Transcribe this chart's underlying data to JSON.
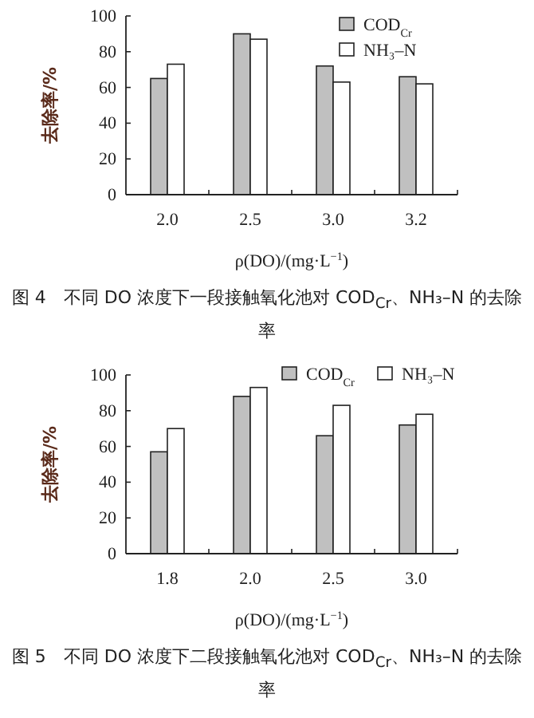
{
  "chart_data": [
    {
      "type": "bar",
      "categories": [
        "2.0",
        "2.5",
        "3.0",
        "3.2"
      ],
      "ylabel": "去除率/%",
      "xlabel": "ρ(DO)/(mg·L$^{−1}$)",
      "ylim": [
        0,
        100
      ],
      "yticks": [
        0,
        20,
        40,
        60,
        80,
        100
      ],
      "legend": "top right",
      "grid": false,
      "series": [
        {
          "name": "COD$_{Cr}$",
          "color": "#c0c0c0",
          "values": [
            65,
            90,
            72,
            66
          ]
        },
        {
          "name": "NH₃–N",
          "color": "#ffffff",
          "values": [
            73,
            87,
            63,
            62
          ]
        }
      ],
      "annotations": [
        "图 4　不同 DO 浓度下一段接触氧化池对 COD$_{Cr}$、NH₃–N 的去除率"
      ]
    },
    {
      "type": "bar",
      "categories": [
        "1.8",
        "2.0",
        "2.5",
        "3.0"
      ],
      "ylabel": "去除率/%",
      "xlabel": "ρ(DO)/(mg·L$^{−1}$)",
      "ylim": [
        0,
        100
      ],
      "yticks": [
        0,
        20,
        40,
        60,
        80,
        100
      ],
      "legend": "top",
      "grid": false,
      "series": [
        {
          "name": "COD$_{Cr}$",
          "color": "#c0c0c0",
          "values": [
            57,
            88,
            66,
            72
          ]
        },
        {
          "name": "NH₃–N",
          "color": "#ffffff",
          "values": [
            70,
            93,
            83,
            78
          ]
        }
      ],
      "annotations": [
        "图 5　不同 DO 浓度下二段接触氧化池对 COD$_{Cr}$、NH₃–N 的去除率"
      ]
    }
  ]
}
